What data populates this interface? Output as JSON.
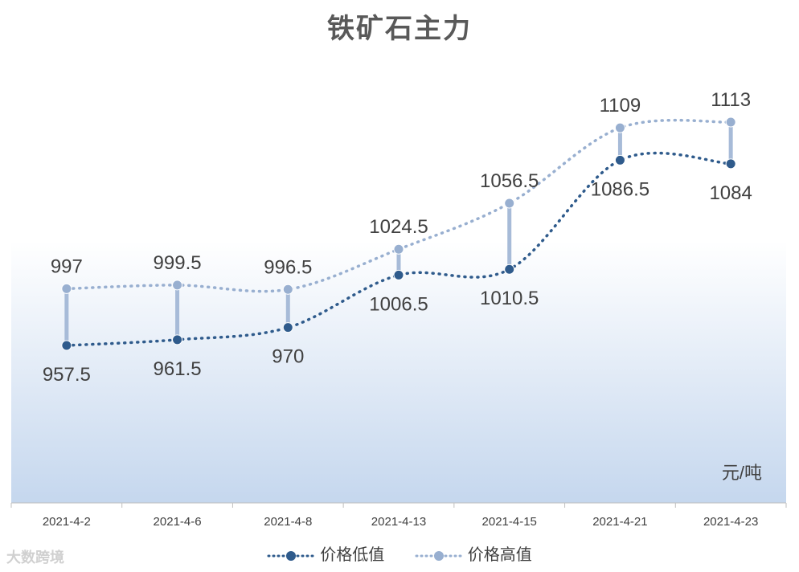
{
  "chart_data": {
    "type": "line",
    "title": "铁矿石主力",
    "unit_label": "元/吨",
    "categories": [
      "2021-4-2",
      "2021-4-6",
      "2021-4-8",
      "2021-4-13",
      "2021-4-15",
      "2021-4-21",
      "2021-4-23"
    ],
    "series": [
      {
        "name": "价格低值",
        "values": [
          957.5,
          961.5,
          970,
          1006.5,
          1010.5,
          1086.5,
          1084
        ],
        "color": "#2f5b8c",
        "label_position": "below"
      },
      {
        "name": "价格高值",
        "values": [
          997,
          999.5,
          996.5,
          1024.5,
          1056.5,
          1109,
          1113
        ],
        "color": "#98afd0",
        "label_position": "above"
      }
    ],
    "high_low_lines": true,
    "line_style": "dotted-smooth",
    "ylim": [
      900,
      1160
    ],
    "legend_position": "bottom",
    "grid": false
  },
  "watermark": "大数跨境"
}
